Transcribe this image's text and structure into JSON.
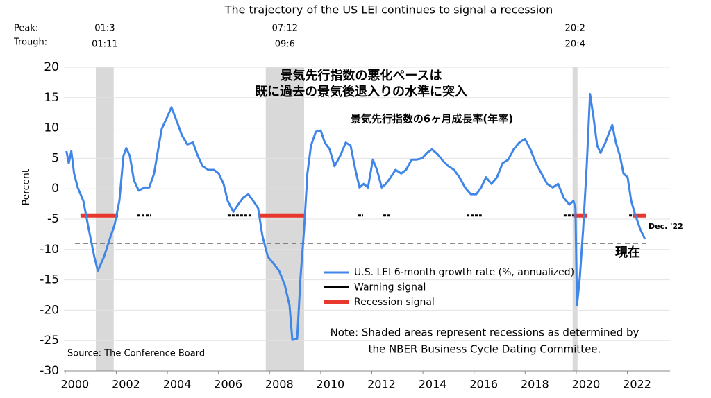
{
  "chart_data": {
    "type": "line",
    "title": "The trajectory of the US LEI continues to signal a recession",
    "peak_label": "Peak:",
    "trough_label": "Trough:",
    "recessions": [
      {
        "peak": "01:3",
        "trough": "01:11",
        "start": 2001.2,
        "end": 2001.9
      },
      {
        "peak": "07:12",
        "trough": "09:6",
        "start": 2007.85,
        "end": 2009.35
      },
      {
        "peak": "20:2",
        "trough": "20:4",
        "start": 2019.86,
        "end": 2020.05
      }
    ],
    "headline": [
      "景気先行指数の悪化ペースは",
      "既に過去の景気後退入りの水準に突入"
    ],
    "series_annotation": "景気先行指数の6ヶ月成長率(年率)",
    "ylabel": "Percent",
    "source": "Source: The Conference Board",
    "note": [
      "Note: Shaded areas represent recessions as determined by",
      "the NBER Business Cycle Dating Committee."
    ],
    "end_label": "Dec. '22",
    "threshold": -9,
    "threshold_label": "現在",
    "x": [
      2000.05,
      2000.14,
      2000.24,
      2000.35,
      2000.49,
      2000.71,
      2000.92,
      2001.14,
      2001.28,
      2001.52,
      2001.74,
      2001.93,
      2002.12,
      2002.28,
      2002.39,
      2002.53,
      2002.69,
      2002.88,
      2003.1,
      2003.29,
      2003.48,
      2003.64,
      2003.78,
      2003.97,
      2004.16,
      2004.38,
      2004.57,
      2004.78,
      2005.0,
      2005.19,
      2005.38,
      2005.6,
      2005.82,
      2006.01,
      2006.2,
      2006.36,
      2006.58,
      2006.77,
      2006.96,
      2007.17,
      2007.36,
      2007.55,
      2007.72,
      2007.93,
      2008.15,
      2008.37,
      2008.59,
      2008.78,
      2008.89,
      2009.08,
      2009.21,
      2009.35,
      2009.48,
      2009.62,
      2009.81,
      2010.0,
      2010.16,
      2010.35,
      2010.54,
      2010.76,
      2010.98,
      2011.17,
      2011.36,
      2011.52,
      2011.68,
      2011.85,
      2012.04,
      2012.2,
      2012.39,
      2012.55,
      2012.74,
      2012.93,
      2013.15,
      2013.34,
      2013.56,
      2013.75,
      2013.97,
      2014.16,
      2014.35,
      2014.57,
      2014.78,
      2015.0,
      2015.22,
      2015.43,
      2015.65,
      2015.87,
      2016.09,
      2016.28,
      2016.47,
      2016.68,
      2016.9,
      2017.12,
      2017.34,
      2017.55,
      2017.77,
      2017.99,
      2018.21,
      2018.42,
      2018.64,
      2018.86,
      2019.08,
      2019.29,
      2019.51,
      2019.73,
      2019.89,
      2019.97,
      2020.03,
      2020.14,
      2020.27,
      2020.41,
      2020.54,
      2020.68,
      2020.82,
      2020.95,
      2021.14,
      2021.3,
      2021.41,
      2021.55,
      2021.71,
      2021.85,
      2022.01,
      2022.15,
      2022.31,
      2022.5,
      2022.69
    ],
    "series": [
      {
        "name": "U.S. LEI 6-month growth rate (%, annualized)",
        "color": "#3f86e8",
        "values": [
          6.2,
          4.2,
          6.2,
          2.5,
          0.2,
          -2,
          -6.6,
          -11.2,
          -13.5,
          -11.2,
          -8.3,
          -6,
          -2,
          5.4,
          6.7,
          5.4,
          1.4,
          -0.3,
          0.2,
          0.2,
          2.5,
          6.5,
          9.9,
          11.6,
          13.4,
          11,
          8.8,
          7.3,
          7.6,
          5.4,
          3.7,
          3.1,
          3.1,
          2.5,
          0.8,
          -2,
          -3.8,
          -2.6,
          -1.5,
          -0.9,
          -2,
          -3.2,
          -7.8,
          -11.2,
          -12.3,
          -13.5,
          -15.8,
          -19.2,
          -24.9,
          -24.7,
          -14.6,
          -6.6,
          2.5,
          7.1,
          9.4,
          9.6,
          7.6,
          6.5,
          3.7,
          5.4,
          7.6,
          7.1,
          3.1,
          0.2,
          0.8,
          0.2,
          4.8,
          3.1,
          0.2,
          0.8,
          1.9,
          3.1,
          2.5,
          3.1,
          4.8,
          4.8,
          5,
          5.9,
          6.5,
          5.7,
          4.6,
          3.7,
          3.1,
          1.9,
          0.2,
          -0.9,
          -0.9,
          0.2,
          1.9,
          0.8,
          1.9,
          4.2,
          4.8,
          6.5,
          7.6,
          8.2,
          6.5,
          4.2,
          2.5,
          0.8,
          0.2,
          0.8,
          -1.5,
          -2.6,
          -2,
          -3.2,
          -19.2,
          -14.6,
          -6.6,
          3.7,
          15.6,
          11.6,
          7.1,
          5.9,
          7.6,
          9.4,
          10.5,
          7.6,
          5.4,
          2.5,
          1.9,
          -2,
          -4.3,
          -6.6,
          -8.3
        ]
      }
    ],
    "signals": [
      {
        "name": "Warning signal",
        "color": "#000000",
        "level": -4.4,
        "periods": [
          [
            2000.6,
            2002.07
          ],
          [
            2002.83,
            2003.37
          ],
          [
            2006.36,
            2007.34
          ],
          [
            2011.47,
            2011.66
          ],
          [
            2012.45,
            2012.72
          ],
          [
            2015.71,
            2016.3
          ],
          [
            2019.51,
            2019.89
          ],
          [
            2022.07,
            2022.23
          ]
        ]
      },
      {
        "name": "Recession signal",
        "color": "#e8372c",
        "level": -4.4,
        "periods": [
          [
            2000.6,
            2002.07
          ],
          [
            2007.61,
            2009.4
          ],
          [
            2019.89,
            2020.43
          ],
          [
            2022.23,
            2022.72
          ]
        ]
      }
    ],
    "xlim": [
      1999.95,
      2023.67
    ],
    "ylim": [
      -30,
      20
    ],
    "xticks": [
      2000,
      2002,
      2004,
      2006,
      2008,
      2010,
      2012,
      2014,
      2016,
      2018,
      2020,
      2022
    ],
    "yticks": [
      -30,
      -25,
      -20,
      -15,
      -10,
      -5,
      0,
      5,
      10,
      15,
      20
    ],
    "grid": true
  }
}
